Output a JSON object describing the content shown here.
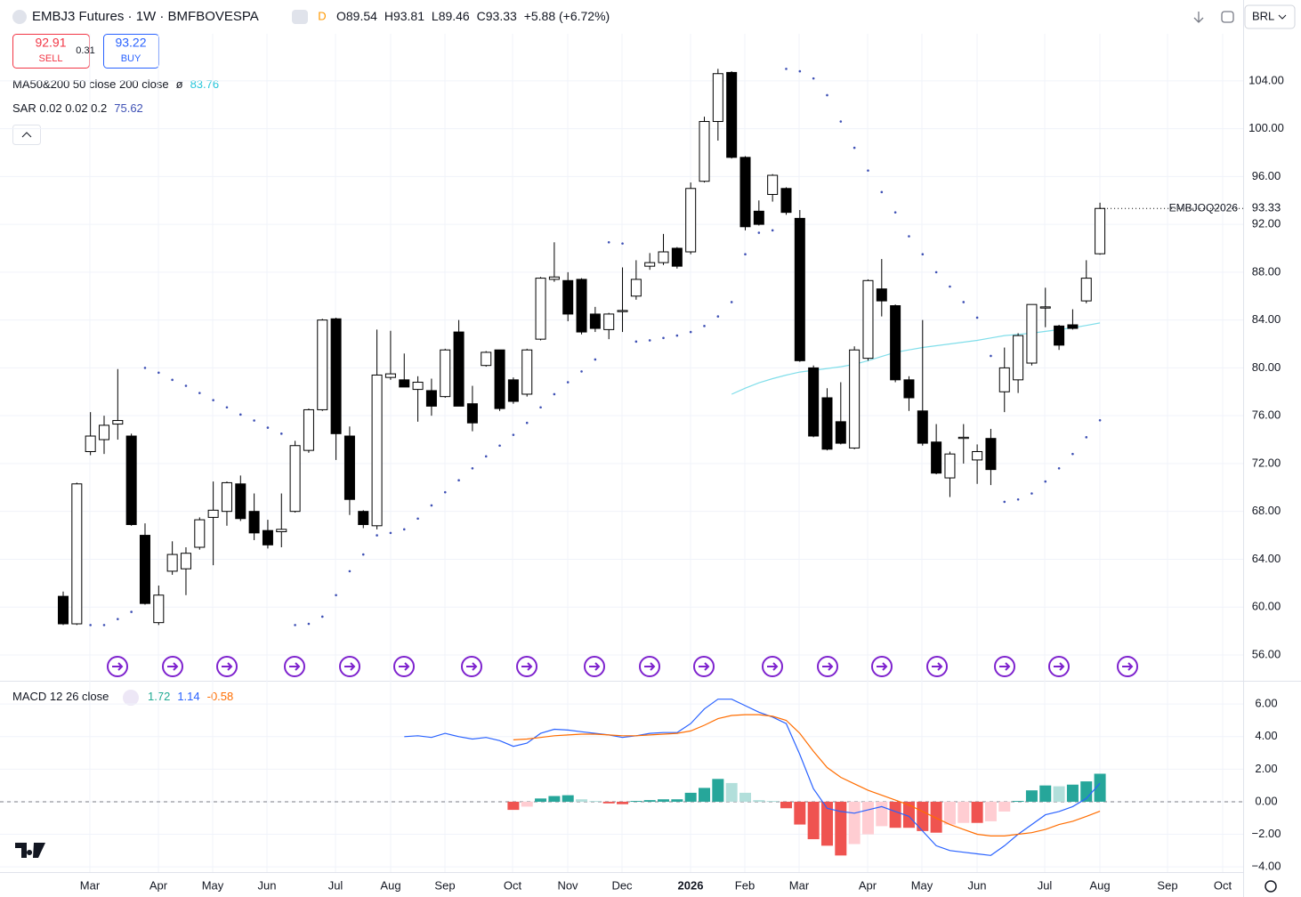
{
  "header": {
    "symbol_title": "EMBJ3 Futures · 1W · BMFBOVESPA",
    "badge": "D",
    "ohlc_labels": {
      "open": "O",
      "high": "H",
      "low": "L",
      "close": "C"
    },
    "change": "+5.88 (+6.72%)",
    "currency": "BRL"
  },
  "trade": {
    "sell_price": 92.91,
    "sell_label": "SELL",
    "spread": 0.31,
    "buy_price": 93.22,
    "buy_label": "BUY"
  },
  "chart_data": [
    {
      "type": "candlestick",
      "symbol_label": "EMBJOQ2026",
      "x_labels": [
        "Mar",
        "Apr",
        "May",
        "Jun",
        "Jul",
        "Aug",
        "Sep",
        "Oct",
        "Nov",
        "Dec",
        "2026",
        "Feb",
        "Mar",
        "Apr",
        "May",
        "Jun",
        "Jul",
        "Aug",
        "Sep",
        "Oct"
      ],
      "open": [
        60.9,
        58.6,
        73.0,
        74.0,
        75.3,
        74.3,
        66.0,
        58.7,
        63.0,
        63.2,
        65.0,
        67.5,
        68.0,
        70.3,
        68.0,
        66.4,
        66.3,
        68.0,
        73.1,
        76.5,
        84.1,
        74.3,
        68.0,
        66.8,
        79.2,
        79.0,
        78.2,
        78.1,
        77.6,
        83.0,
        77.0,
        80.2,
        81.5,
        79.0,
        77.8,
        82.4,
        87.4,
        87.3,
        87.4,
        84.5,
        83.2,
        84.7,
        86.0,
        88.5,
        88.8,
        90.0,
        89.7,
        95.6,
        100.6,
        104.7,
        97.6,
        93.1,
        94.5,
        95.0,
        92.5,
        80.0,
        77.5,
        75.5,
        73.3,
        80.8,
        86.6,
        85.2,
        79.0,
        76.4,
        73.8,
        70.8,
        74.1,
        72.3,
        74.1,
        78.0,
        79.0,
        80.4,
        85.0,
        83.5,
        83.6,
        85.6,
        89.54
      ],
      "high": [
        61.3,
        70.4,
        76.3,
        76.0,
        79.9,
        74.5,
        67.0,
        61.8,
        65.5,
        65.0,
        67.5,
        70.5,
        70.5,
        71.0,
        69.5,
        67.3,
        69.5,
        73.9,
        76.6,
        84.1,
        84.2,
        75.1,
        68.1,
        83.2,
        83.1,
        81.2,
        79.3,
        79.1,
        81.6,
        84.0,
        78.5,
        81.4,
        81.5,
        79.2,
        81.6,
        87.6,
        90.5,
        88.0,
        87.5,
        85.1,
        84.6,
        88.4,
        89.0,
        89.6,
        91.2,
        90.1,
        95.5,
        101.0,
        105.0,
        104.8,
        97.7,
        94.0,
        96.2,
        95.1,
        93.2,
        80.2,
        78.3,
        78.8,
        81.8,
        87.4,
        89.1,
        85.3,
        79.3,
        84.0,
        75.3,
        73.0,
        75.3,
        73.6,
        74.9,
        81.7,
        82.9,
        85.3,
        86.7,
        83.6,
        84.9,
        89.0,
        93.81
      ],
      "low": [
        58.5,
        58.5,
        72.7,
        72.8,
        74.0,
        66.8,
        60.2,
        58.5,
        62.7,
        61.0,
        64.8,
        63.5,
        66.8,
        67.2,
        65.6,
        64.9,
        65.0,
        67.9,
        72.9,
        76.4,
        72.3,
        67.7,
        66.6,
        66.5,
        79.0,
        78.4,
        75.5,
        76.0,
        77.5,
        76.8,
        74.7,
        80.1,
        76.4,
        77.0,
        77.6,
        82.3,
        87.2,
        83.9,
        82.8,
        83.0,
        82.4,
        83.0,
        85.7,
        88.2,
        88.6,
        88.3,
        89.5,
        95.5,
        99.0,
        97.5,
        91.5,
        91.9,
        93.9,
        92.8,
        80.5,
        74.2,
        73.1,
        73.6,
        73.2,
        80.6,
        84.3,
        78.8,
        76.4,
        73.5,
        71.1,
        69.2,
        72.0,
        70.3,
        70.2,
        76.3,
        77.9,
        80.2,
        83.4,
        81.5,
        83.2,
        85.4,
        89.46
      ],
      "close": [
        58.6,
        70.3,
        74.3,
        75.2,
        75.6,
        66.9,
        60.3,
        61.0,
        64.4,
        64.5,
        67.3,
        68.1,
        70.4,
        67.4,
        66.2,
        65.2,
        66.5,
        73.5,
        76.5,
        84.0,
        74.5,
        69.0,
        66.9,
        79.4,
        79.5,
        78.4,
        78.8,
        76.8,
        81.5,
        76.8,
        75.4,
        81.3,
        76.6,
        77.2,
        81.5,
        87.5,
        87.6,
        84.5,
        83.0,
        83.3,
        84.5,
        84.8,
        87.4,
        88.8,
        89.7,
        88.5,
        95.0,
        100.6,
        104.6,
        97.6,
        91.8,
        92.0,
        96.1,
        93.0,
        80.6,
        74.3,
        73.2,
        73.7,
        81.5,
        87.3,
        85.6,
        79.0,
        77.5,
        73.7,
        71.2,
        72.8,
        74.2,
        73.0,
        71.5,
        80.0,
        82.7,
        85.3,
        85.1,
        81.9,
        83.3,
        87.5,
        93.33
      ],
      "up_color": "#ffffff",
      "down_color": "#000000",
      "wick_color": "#000000",
      "overlays": [
        {
          "type": "line",
          "name": "MA50&200 50 close 200 close",
          "legend_mark": "ø",
          "color": "#80deea",
          "values": [
            null,
            null,
            null,
            null,
            null,
            null,
            null,
            null,
            null,
            null,
            null,
            null,
            null,
            null,
            null,
            null,
            null,
            null,
            null,
            null,
            null,
            null,
            null,
            null,
            null,
            null,
            null,
            null,
            null,
            null,
            null,
            null,
            null,
            null,
            null,
            null,
            null,
            null,
            null,
            null,
            null,
            null,
            null,
            null,
            null,
            null,
            null,
            null,
            null,
            77.8,
            78.3,
            78.75,
            79.1,
            79.4,
            79.65,
            79.8,
            79.95,
            80.1,
            80.3,
            80.6,
            80.95,
            81.3,
            81.5,
            81.7,
            81.85,
            82.0,
            82.15,
            82.3,
            82.5,
            82.7,
            82.8,
            82.9,
            83.05,
            83.2,
            83.35,
            83.55,
            83.76
          ]
        },
        {
          "type": "dots",
          "name": "SAR 0.02 0.02 0.2",
          "color": "#3f51b5",
          "values": [
            null,
            null,
            58.5,
            58.5,
            59.0,
            59.6,
            80.0,
            79.6,
            79.0,
            78.5,
            77.9,
            77.3,
            76.7,
            76.1,
            75.6,
            75.0,
            74.5,
            58.5,
            58.6,
            59.2,
            61.0,
            63.0,
            64.4,
            66.0,
            66.2,
            66.5,
            67.4,
            68.5,
            69.6,
            70.6,
            71.6,
            72.6,
            73.5,
            74.4,
            75.4,
            76.7,
            77.8,
            78.8,
            79.7,
            80.7,
            90.5,
            90.4,
            82.2,
            82.3,
            82.5,
            82.7,
            83.0,
            83.5,
            84.3,
            85.5,
            89.5,
            91.3,
            91.5,
            105.0,
            104.8,
            104.2,
            102.8,
            100.6,
            98.4,
            96.5,
            94.7,
            93.0,
            91.0,
            89.5,
            88.0,
            86.8,
            85.5,
            84.2,
            81.0,
            68.8,
            69.0,
            69.5,
            70.5,
            71.6,
            72.8,
            74.2,
            75.62
          ]
        }
      ],
      "ylim": [
        53.84,
        107.93
      ],
      "yticks": [
        {
          "value": 56,
          "label": "56.00"
        },
        {
          "value": 60,
          "label": "60.00"
        },
        {
          "value": 64,
          "label": "64.00"
        },
        {
          "value": 68,
          "label": "68.00"
        },
        {
          "value": 72,
          "label": "72.00"
        },
        {
          "value": 76,
          "label": "76.00"
        },
        {
          "value": 80,
          "label": "80.00"
        },
        {
          "value": 84,
          "label": "84.00"
        },
        {
          "value": 88,
          "label": "88.00"
        },
        {
          "value": 92,
          "label": "92.00"
        },
        {
          "value": 96,
          "label": "96.00"
        },
        {
          "value": 100,
          "label": "100.00"
        },
        {
          "value": 104,
          "label": "104.00"
        }
      ],
      "grid": true
    },
    {
      "type": "macd",
      "title": "MACD 12 26 close",
      "histogram": {
        "values": [
          null,
          null,
          null,
          null,
          null,
          null,
          null,
          null,
          null,
          null,
          null,
          null,
          null,
          null,
          null,
          null,
          null,
          null,
          null,
          null,
          null,
          null,
          null,
          null,
          null,
          null,
          null,
          null,
          null,
          null,
          null,
          null,
          null,
          -0.5,
          -0.3,
          0.2,
          0.35,
          0.4,
          0.15,
          0.05,
          -0.1,
          -0.15,
          0.05,
          0.1,
          0.15,
          0.15,
          0.55,
          0.85,
          1.4,
          1.15,
          0.55,
          0.1,
          0.05,
          -0.4,
          -1.4,
          -2.3,
          -2.7,
          -3.3,
          -2.6,
          -2.0,
          -1.5,
          -1.6,
          -1.6,
          -1.8,
          -1.9,
          -1.4,
          -1.3,
          -1.3,
          -1.2,
          -0.6,
          0.05,
          0.7,
          1.0,
          0.95,
          1.05,
          1.25,
          1.72
        ],
        "colors": {
          "up_strong": "#26a69a",
          "up_weak": "#b2dfdb",
          "down_strong": "#ef5350",
          "down_weak": "#ffcdd2"
        },
        "legend_color": "#22ab94"
      },
      "series": [
        {
          "color": "#2962ff",
          "values": [
            null,
            null,
            null,
            null,
            null,
            null,
            null,
            null,
            null,
            null,
            null,
            null,
            null,
            null,
            null,
            null,
            null,
            null,
            null,
            null,
            null,
            null,
            null,
            null,
            null,
            4.0,
            4.05,
            3.95,
            4.2,
            4.0,
            3.85,
            3.95,
            3.75,
            3.4,
            3.6,
            4.2,
            4.45,
            4.4,
            4.3,
            4.2,
            4.1,
            3.95,
            4.05,
            4.2,
            4.25,
            4.25,
            4.8,
            5.7,
            6.3,
            6.3,
            5.9,
            5.5,
            5.2,
            4.8,
            2.9,
            0.8,
            -0.4,
            -0.6,
            -0.7,
            -0.5,
            -0.3,
            -0.6,
            -0.9,
            -1.8,
            -2.7,
            -3.0,
            -3.1,
            -3.2,
            -3.3,
            -2.7,
            -2.0,
            -1.4,
            -0.8,
            -0.6,
            -0.3,
            0.2,
            1.14
          ]
        },
        {
          "color": "#ff6d00",
          "values": [
            null,
            null,
            null,
            null,
            null,
            null,
            null,
            null,
            null,
            null,
            null,
            null,
            null,
            null,
            null,
            null,
            null,
            null,
            null,
            null,
            null,
            null,
            null,
            null,
            null,
            null,
            null,
            null,
            null,
            null,
            null,
            null,
            null,
            3.8,
            3.85,
            3.95,
            4.05,
            4.1,
            4.15,
            4.15,
            4.1,
            4.05,
            4.05,
            4.1,
            4.15,
            4.2,
            4.35,
            4.7,
            5.1,
            5.3,
            5.35,
            5.35,
            5.25,
            5.0,
            4.2,
            3.1,
            2.1,
            1.5,
            1.1,
            0.7,
            0.4,
            0.1,
            -0.2,
            -0.6,
            -1.0,
            -1.4,
            -1.7,
            -2.0,
            -2.1,
            -2.1,
            -2.0,
            -1.9,
            -1.7,
            -1.4,
            -1.2,
            -0.9,
            -0.58
          ]
        }
      ],
      "ylim": [
        -4.32,
        7.43
      ],
      "yticks": [
        {
          "value": 6,
          "label": "6.00"
        },
        {
          "value": 4,
          "label": "4.00"
        },
        {
          "value": 2,
          "label": "2.00"
        },
        {
          "value": 0,
          "label": "0.00"
        },
        {
          "value": -2,
          "label": "−2.00"
        },
        {
          "value": -4,
          "label": "−4.00"
        }
      ]
    }
  ]
}
